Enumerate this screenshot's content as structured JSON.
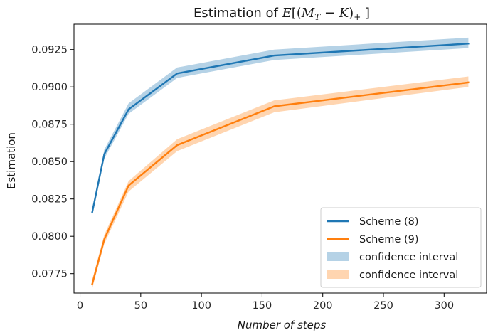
{
  "chart_data": {
    "type": "line",
    "title": "Estimation of E[(M_T − K)_+]",
    "xlabel": "Number of steps",
    "ylabel": "Estimation",
    "xlim": [
      -5,
      335
    ],
    "ylim": [
      0.0762,
      0.0942
    ],
    "x_ticks": [
      0,
      50,
      100,
      150,
      200,
      250,
      300
    ],
    "y_ticks": [
      0.0775,
      0.08,
      0.0825,
      0.085,
      0.0875,
      0.09,
      0.0925
    ],
    "y_tick_labels": [
      "0.0775",
      "0.0800",
      "0.0825",
      "0.0850",
      "0.0875",
      "0.0900",
      "0.0925"
    ],
    "x": [
      10,
      20,
      40,
      80,
      160,
      320
    ],
    "series": [
      {
        "name": "Scheme (8)",
        "color": "#1f77b4",
        "values": [
          0.0816,
          0.0855,
          0.0885,
          0.0909,
          0.0921,
          0.0929
        ],
        "ci_lower": [
          0.0814,
          0.0852,
          0.0882,
          0.0906,
          0.0918,
          0.0926
        ],
        "ci_upper": [
          0.0818,
          0.0858,
          0.0889,
          0.0913,
          0.0925,
          0.0933
        ]
      },
      {
        "name": "Scheme (9)",
        "color": "#ff7f0e",
        "values": [
          0.0768,
          0.0798,
          0.0834,
          0.0861,
          0.0887,
          0.0903
        ],
        "ci_lower": [
          0.0765,
          0.0795,
          0.083,
          0.0857,
          0.0883,
          0.09
        ],
        "ci_upper": [
          0.0771,
          0.0801,
          0.0837,
          0.0865,
          0.0891,
          0.0907
        ]
      }
    ],
    "legend": {
      "placement": "bottom-right",
      "entries": [
        {
          "label": "Scheme (8)",
          "kind": "line",
          "color": "#1f77b4"
        },
        {
          "label": "Scheme (9)",
          "kind": "line",
          "color": "#ff7f0e"
        },
        {
          "label": "confidence interval",
          "kind": "band",
          "color": "#1f77b4"
        },
        {
          "label": "confidence interval",
          "kind": "band",
          "color": "#ff7f0e"
        }
      ]
    },
    "grid": false
  }
}
